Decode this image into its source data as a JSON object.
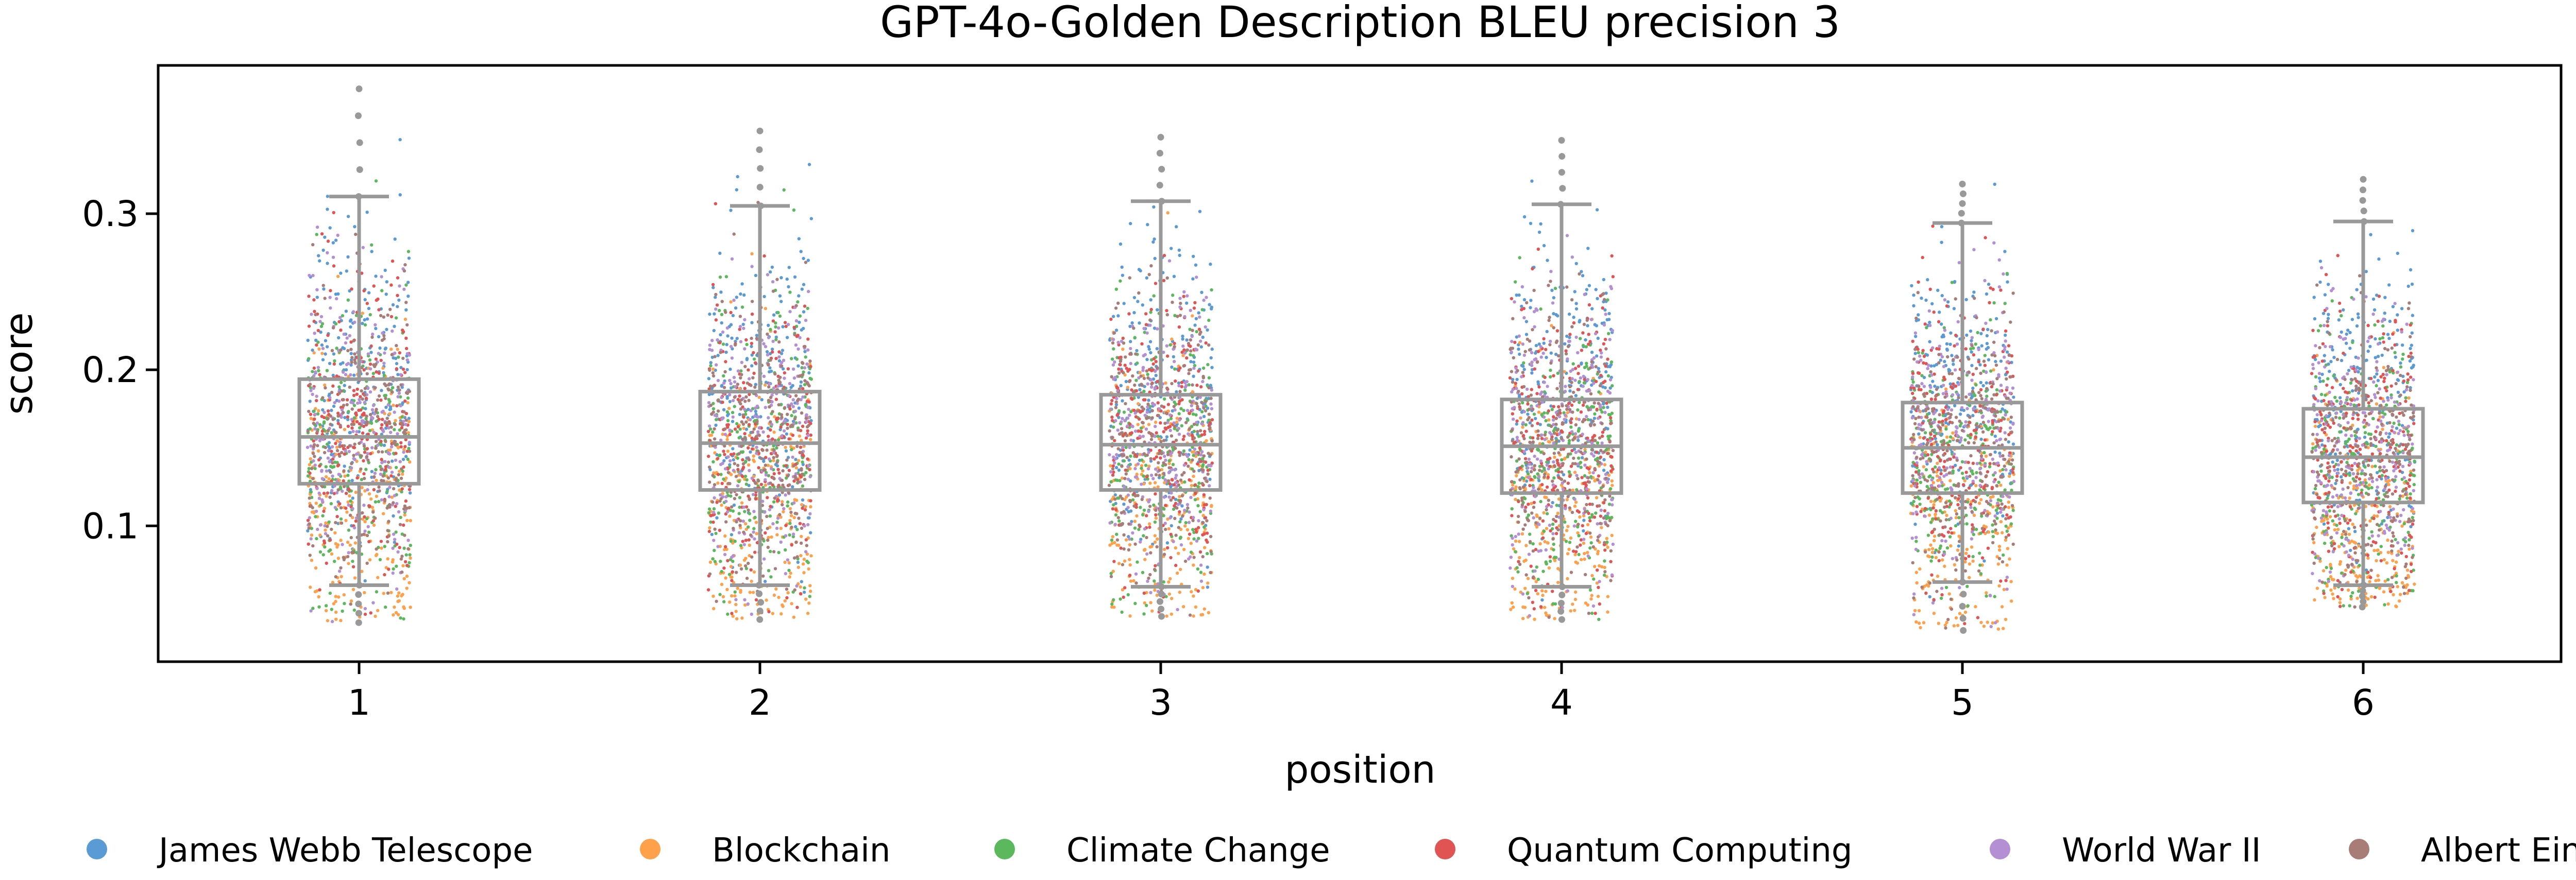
{
  "chart_data": {
    "type": "box",
    "title": "GPT-4o-Golden Description BLEU precision 3",
    "xlabel": "position",
    "ylabel": "score",
    "categories": [
      "1",
      "2",
      "3",
      "4",
      "5",
      "6"
    ],
    "ylim": [
      0.013,
      0.395
    ],
    "yticks": [
      0.1,
      0.2,
      0.3
    ],
    "ytick_labels": [
      "0.1",
      "0.2",
      "0.3"
    ],
    "grid": false,
    "legend_position": "bottom",
    "series": [
      {
        "name": "James Webb Telescope",
        "color": "#5b9bd5"
      },
      {
        "name": "Blockchain",
        "color": "#ffa04a"
      },
      {
        "name": "Climate Change",
        "color": "#5cb85c"
      },
      {
        "name": "Quantum Computing",
        "color": "#e05454"
      },
      {
        "name": "World War II",
        "color": "#b48fd4"
      },
      {
        "name": "Albert Einstein",
        "color": "#a87d77"
      }
    ],
    "boxes": [
      {
        "position": "1",
        "whisker_low": 0.062,
        "q1": 0.127,
        "median": 0.157,
        "q3": 0.194,
        "whisker_high": 0.311,
        "min": 0.038,
        "max": 0.38
      },
      {
        "position": "2",
        "whisker_low": 0.062,
        "q1": 0.123,
        "median": 0.153,
        "q3": 0.186,
        "whisker_high": 0.305,
        "min": 0.04,
        "max": 0.353
      },
      {
        "position": "3",
        "whisker_low": 0.061,
        "q1": 0.123,
        "median": 0.152,
        "q3": 0.184,
        "whisker_high": 0.308,
        "min": 0.042,
        "max": 0.349
      },
      {
        "position": "4",
        "whisker_low": 0.061,
        "q1": 0.121,
        "median": 0.151,
        "q3": 0.181,
        "whisker_high": 0.306,
        "min": 0.04,
        "max": 0.347
      },
      {
        "position": "5",
        "whisker_low": 0.064,
        "q1": 0.121,
        "median": 0.15,
        "q3": 0.179,
        "whisker_high": 0.294,
        "min": 0.033,
        "max": 0.319
      },
      {
        "position": "6",
        "whisker_low": 0.062,
        "q1": 0.115,
        "median": 0.144,
        "q3": 0.175,
        "whisker_high": 0.295,
        "min": 0.048,
        "max": 0.322
      }
    ],
    "box_color": "#999999"
  }
}
